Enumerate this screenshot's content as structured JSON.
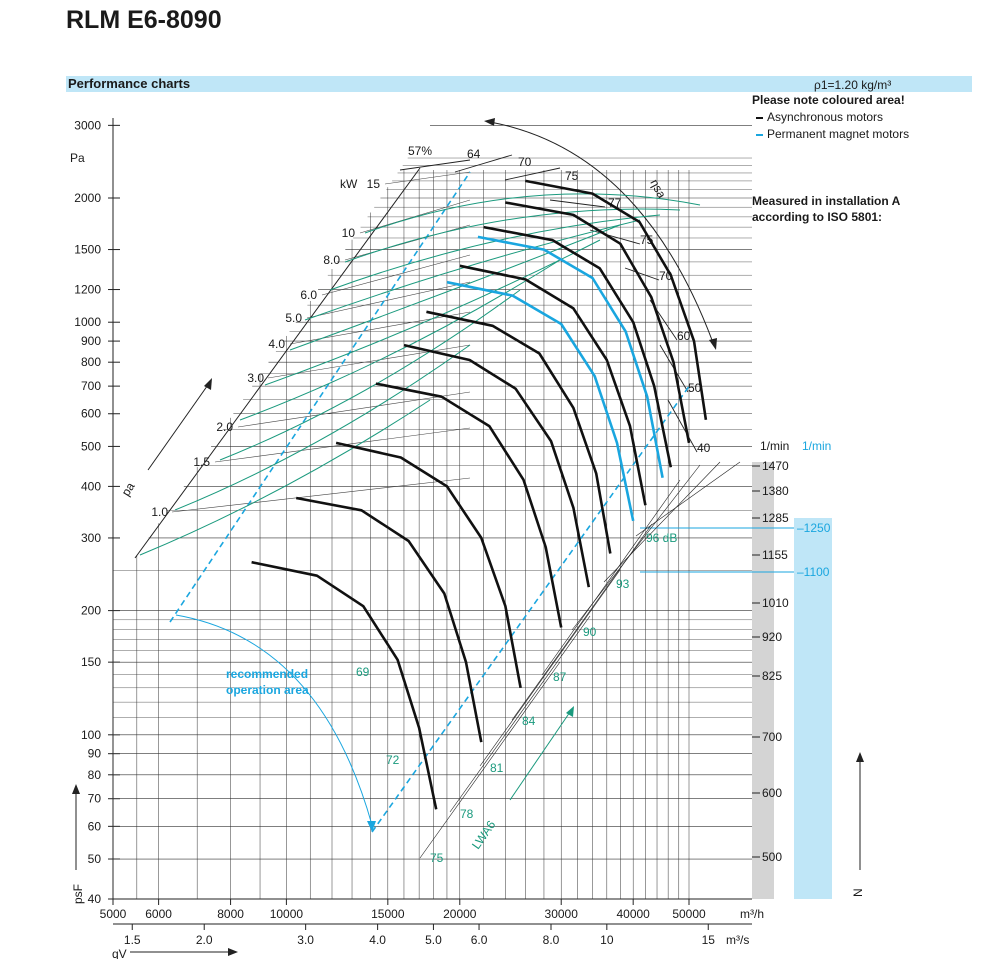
{
  "title": "RLM E6-8090",
  "header": {
    "label": "Performance charts",
    "density": "ρ1=1.20 kg/m³"
  },
  "legend": {
    "note": "Please note coloured area!",
    "items": [
      {
        "label": "Asynchronous motors",
        "color": "#111111"
      },
      {
        "label": "Permanent magnet motors",
        "color": "#1aa6df"
      }
    ]
  },
  "installation": {
    "line1": "Measured in installation A",
    "line2": "according to ISO 5801:"
  },
  "colors": {
    "header_bar": "#bfe6f7",
    "speed_band": "#d4d4d4",
    "pm_band": "#bfe6f7",
    "efficiency_curve": "#1b9a7e",
    "pm_curve": "#1aa6df",
    "grid": "#333333"
  },
  "chart_data": {
    "type": "line",
    "x_scale": "log",
    "y_scale": "log",
    "xlabel": "qV",
    "xunit_top": "m³/h",
    "xunit_bottom": "m³/s",
    "ylabel": "psF",
    "yunit": "Pa",
    "x_ticks_m3h": [
      "5000",
      "6000",
      "8000",
      "10000",
      "15000",
      "20000",
      "30000",
      "40000",
      "50000"
    ],
    "x_ticks_m3s": [
      "1.5",
      "2.0",
      "3.0",
      "4.0",
      "5.0",
      "6.0",
      "8.0",
      "10",
      "15"
    ],
    "y_ticks": [
      "40",
      "50",
      "60",
      "70",
      "80",
      "90",
      "100",
      "150",
      "200",
      "300",
      "400",
      "500",
      "600",
      "700",
      "800",
      "900",
      "1000",
      "1200",
      "1500",
      "2000",
      "3000"
    ],
    "speed_axis": {
      "unit_async": "1/min",
      "unit_pm": "1/min",
      "async_speeds": [
        "1470",
        "1380",
        "1285",
        "1155",
        "1010",
        "920",
        "825",
        "700",
        "600",
        "500"
      ],
      "pm_speeds": [
        "1250",
        "1100"
      ],
      "axis_label": "N"
    },
    "power_labels": {
      "unit": "kW",
      "values": [
        "15",
        "10",
        "8.0",
        "6.0",
        "5.0",
        "4.0",
        "3.0",
        "2.0",
        "1.5",
        "1.0"
      ]
    },
    "efficiency_labels": {
      "axis_label": "ηsa",
      "values": [
        "57%",
        "64",
        "70",
        "75",
        "77",
        "75",
        "70",
        "60",
        "50",
        "40"
      ]
    },
    "sound_labels": {
      "axis_label": "LWA6",
      "values": [
        "75",
        "78",
        "81",
        "84",
        "87",
        "90",
        "93",
        "96 dB",
        "72",
        "69"
      ]
    },
    "pressure_axis_label": "pa",
    "recommended_area": [
      "recommended",
      "operation area"
    ],
    "speed_curves": [
      {
        "speed": 1470,
        "points": [
          [
            26000,
            2200
          ],
          [
            34000,
            2050
          ],
          [
            41000,
            1750
          ],
          [
            46500,
            1300
          ],
          [
            51000,
            900
          ],
          [
            53500,
            580
          ]
        ]
      },
      {
        "speed": 1380,
        "points": [
          [
            24000,
            1950
          ],
          [
            31500,
            1820
          ],
          [
            38000,
            1550
          ],
          [
            43000,
            1150
          ],
          [
            47000,
            800
          ],
          [
            50000,
            510
          ]
        ]
      },
      {
        "speed": 1285,
        "points": [
          [
            22000,
            1700
          ],
          [
            29000,
            1580
          ],
          [
            35000,
            1350
          ],
          [
            40000,
            1000
          ],
          [
            43500,
            700
          ],
          [
            46500,
            445
          ]
        ]
      },
      {
        "speed": 1155,
        "points": [
          [
            20000,
            1370
          ],
          [
            26000,
            1270
          ],
          [
            31500,
            1080
          ],
          [
            36000,
            810
          ],
          [
            39500,
            560
          ],
          [
            42000,
            360
          ]
        ]
      },
      {
        "speed": 1010,
        "points": [
          [
            17500,
            1060
          ],
          [
            22800,
            980
          ],
          [
            27500,
            840
          ],
          [
            31500,
            620
          ],
          [
            34500,
            430
          ],
          [
            36500,
            275
          ]
        ]
      },
      {
        "speed": 920,
        "points": [
          [
            16000,
            880
          ],
          [
            20800,
            810
          ],
          [
            25000,
            690
          ],
          [
            28800,
            515
          ],
          [
            31500,
            355
          ],
          [
            33500,
            228
          ]
        ]
      },
      {
        "speed": 825,
        "points": [
          [
            14300,
            710
          ],
          [
            18600,
            660
          ],
          [
            22500,
            560
          ],
          [
            25800,
            415
          ],
          [
            28200,
            285
          ],
          [
            30000,
            182
          ]
        ]
      },
      {
        "speed": 700,
        "points": [
          [
            12200,
            510
          ],
          [
            15800,
            470
          ],
          [
            19000,
            400
          ],
          [
            21800,
            300
          ],
          [
            24000,
            205
          ],
          [
            25500,
            130
          ]
        ]
      },
      {
        "speed": 600,
        "points": [
          [
            10400,
            375
          ],
          [
            13500,
            350
          ],
          [
            16300,
            295
          ],
          [
            18800,
            220
          ],
          [
            20500,
            150
          ],
          [
            21800,
            96
          ]
        ]
      },
      {
        "speed": 500,
        "points": [
          [
            8700,
            262
          ],
          [
            11300,
            243
          ],
          [
            13600,
            205
          ],
          [
            15600,
            152
          ],
          [
            17000,
            104
          ],
          [
            18200,
            66
          ]
        ]
      }
    ],
    "pm_curves": [
      {
        "speed": 1250,
        "points": [
          [
            21500,
            1610
          ],
          [
            28000,
            1500
          ],
          [
            34000,
            1280
          ],
          [
            38800,
            950
          ],
          [
            42300,
            660
          ],
          [
            45000,
            420
          ]
        ]
      },
      {
        "speed": 1100,
        "points": [
          [
            19000,
            1250
          ],
          [
            24700,
            1160
          ],
          [
            30000,
            990
          ],
          [
            34300,
            740
          ],
          [
            37500,
            510
          ],
          [
            40000,
            330
          ]
        ]
      }
    ]
  }
}
